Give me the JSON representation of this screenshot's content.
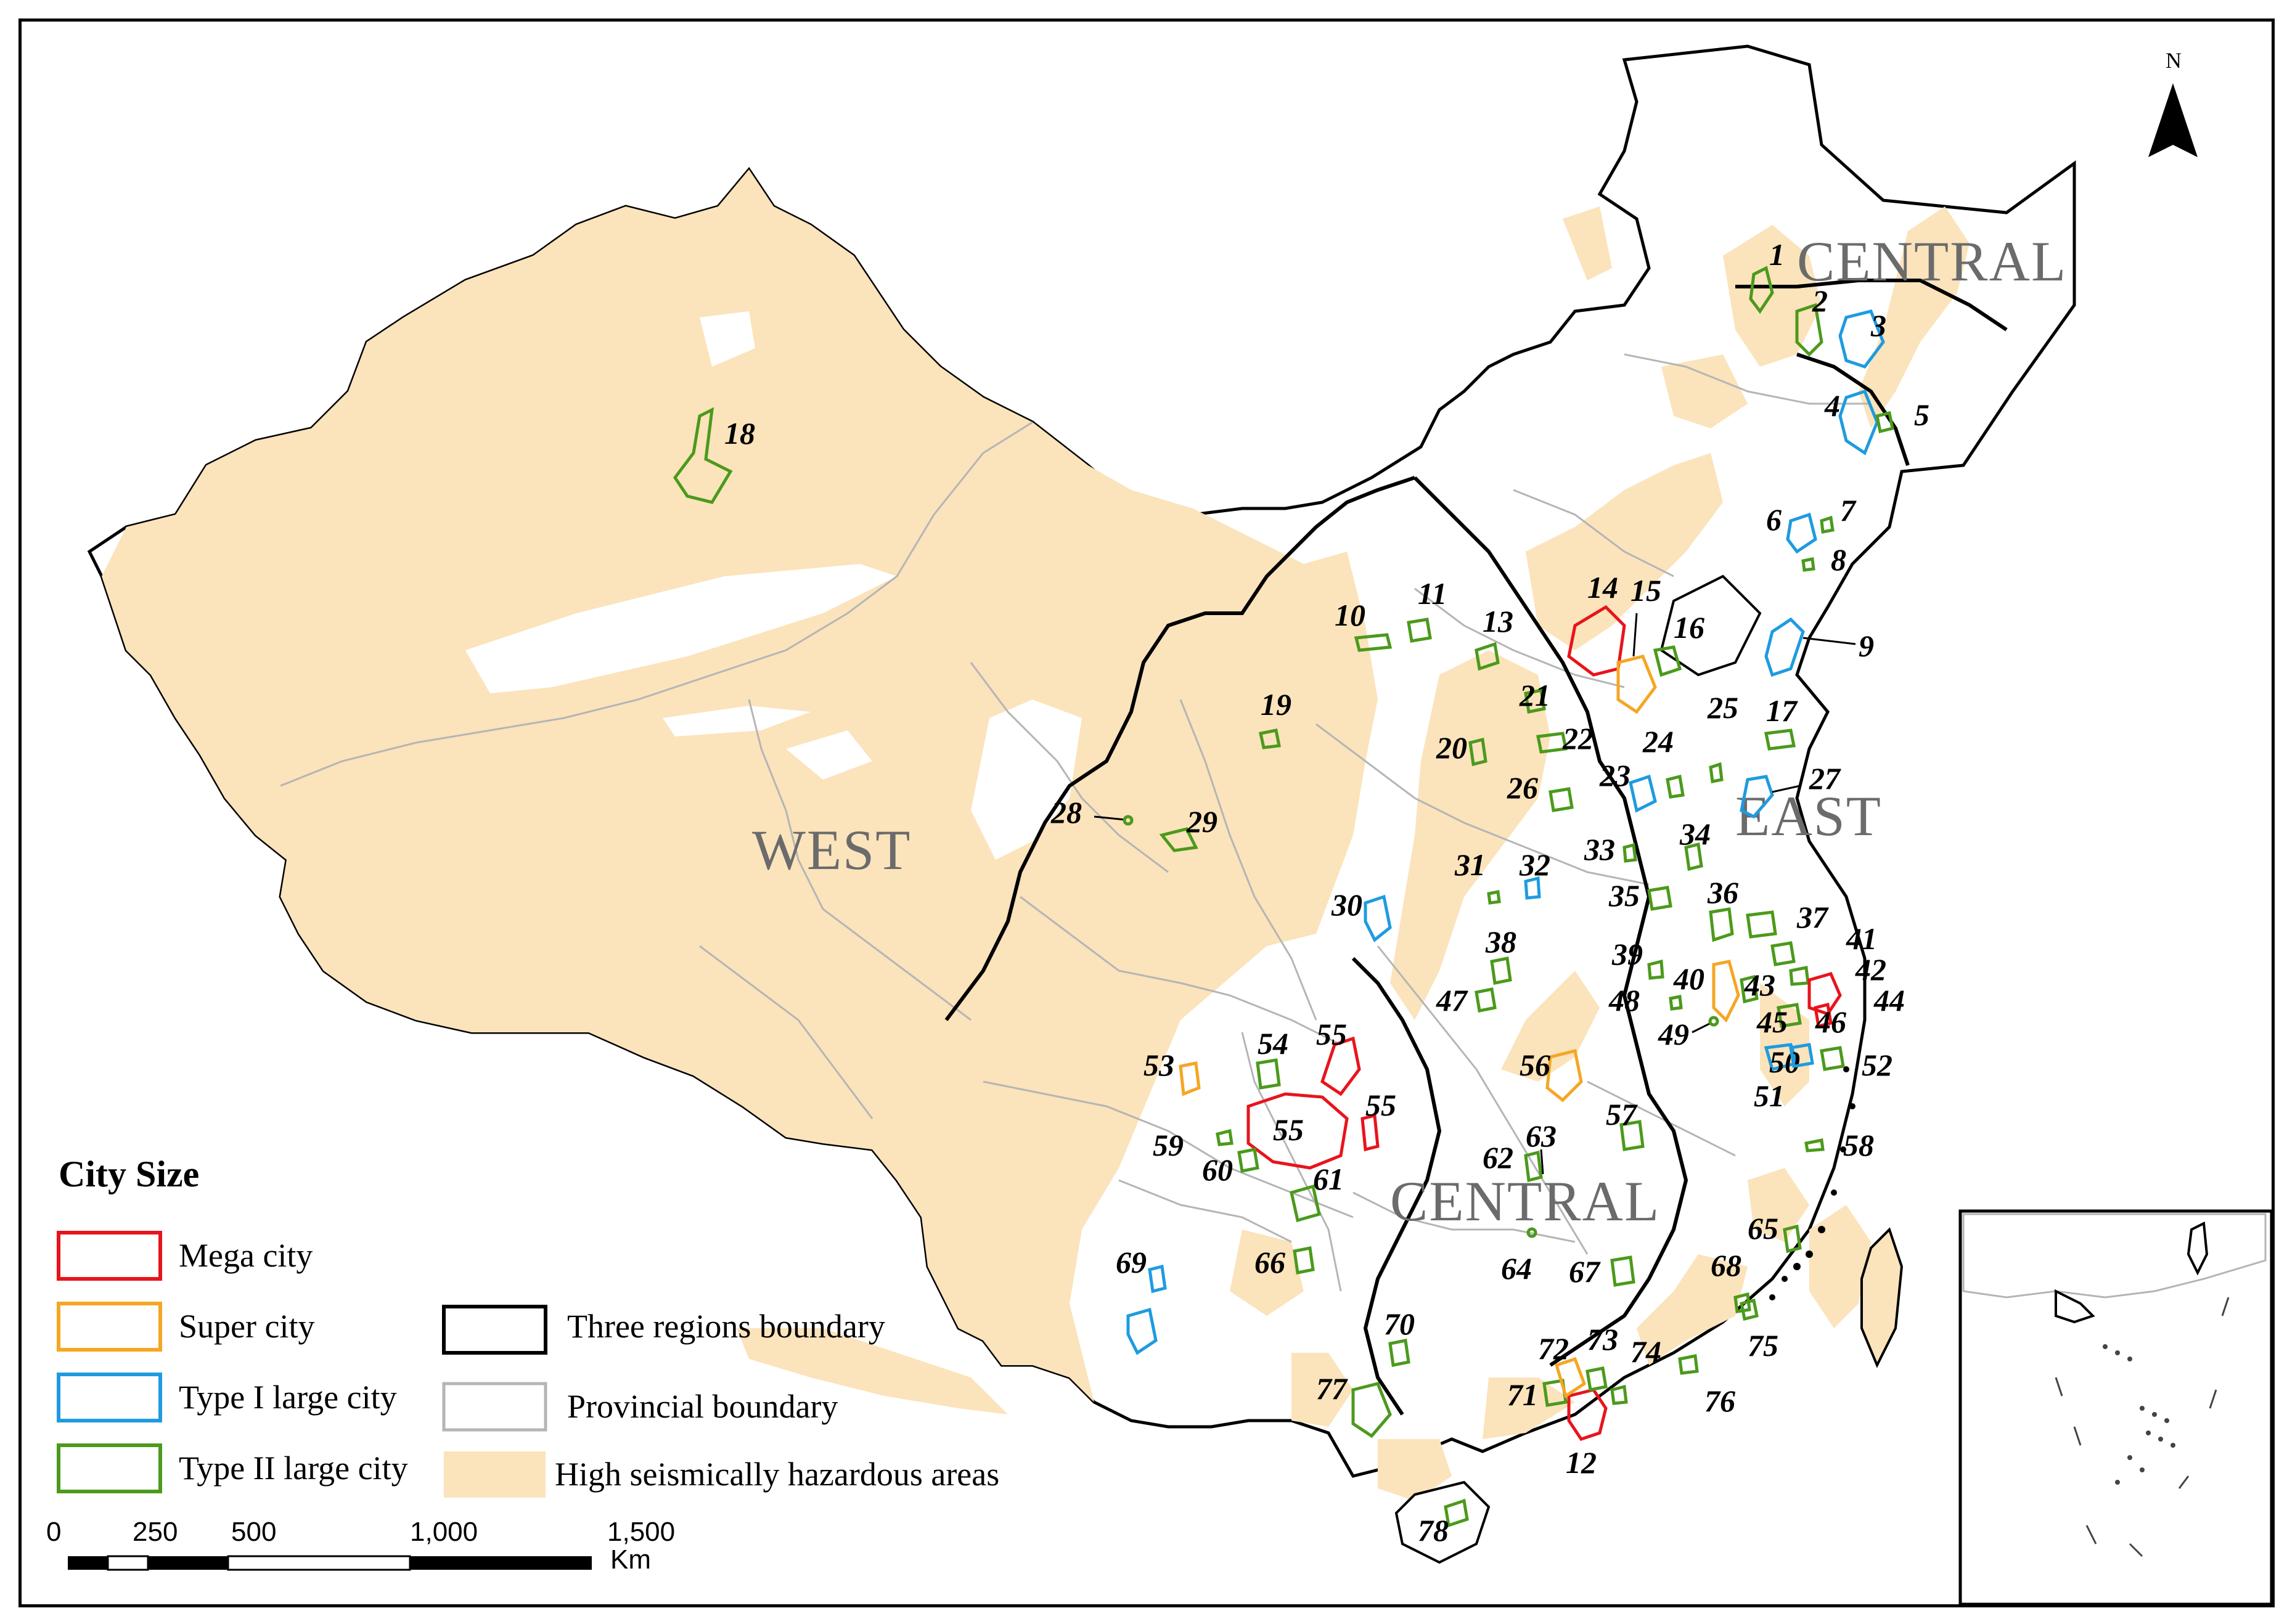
{
  "map": {
    "regions": [
      {
        "id": "west",
        "label": "WEST"
      },
      {
        "id": "central-north",
        "label": "CENTRAL"
      },
      {
        "id": "central-south",
        "label": "CENTRAL"
      },
      {
        "id": "east",
        "label": "EAST"
      }
    ],
    "north_label": "N",
    "icon": "north-arrow-icon"
  },
  "legend": {
    "title": "City Size",
    "city_size": [
      {
        "label": "Mega city",
        "color": "#e8141c"
      },
      {
        "label": "Super city",
        "color": "#f5a623"
      },
      {
        "label": "Type I large city",
        "color": "#1e9be0"
      },
      {
        "label": "Type II large city",
        "color": "#4b9a1c"
      }
    ],
    "boundaries": [
      {
        "label": "Three regions boundary",
        "color": "#000000"
      },
      {
        "label": "Provincial boundary",
        "color": "#b5b5b5"
      },
      {
        "label": "High seismically hazardous areas",
        "color": "#fbe3bb"
      }
    ]
  },
  "scale_bar": {
    "ticks": [
      "0",
      "250",
      "500",
      "1,000",
      "1,500"
    ],
    "unit": "Km"
  },
  "cities": [
    {
      "id": "1",
      "size": "Type II large city"
    },
    {
      "id": "2",
      "size": "Type II large city"
    },
    {
      "id": "3",
      "size": "Type I large city"
    },
    {
      "id": "4",
      "size": "Type I large city"
    },
    {
      "id": "5",
      "size": "Type II large city"
    },
    {
      "id": "6",
      "size": "Type I large city"
    },
    {
      "id": "7",
      "size": "Type II large city"
    },
    {
      "id": "8",
      "size": "Type II large city"
    },
    {
      "id": "9",
      "size": "Type I large city"
    },
    {
      "id": "10",
      "size": "Type II large city"
    },
    {
      "id": "11",
      "size": "Type II large city"
    },
    {
      "id": "12",
      "size": "Mega city"
    },
    {
      "id": "13",
      "size": "Type II large city"
    },
    {
      "id": "14",
      "size": "Mega city"
    },
    {
      "id": "15",
      "size": "Super city"
    },
    {
      "id": "16",
      "size": "Type II large city"
    },
    {
      "id": "17",
      "size": "Type II large city"
    },
    {
      "id": "18",
      "size": "Type II large city"
    },
    {
      "id": "19",
      "size": "Type II large city"
    },
    {
      "id": "20",
      "size": "Type II large city"
    },
    {
      "id": "21",
      "size": "Type II large city"
    },
    {
      "id": "22",
      "size": "Type II large city"
    },
    {
      "id": "23",
      "size": "Type I large city"
    },
    {
      "id": "24",
      "size": "Type II large city"
    },
    {
      "id": "25",
      "size": "Type II large city"
    },
    {
      "id": "26",
      "size": "Type II large city"
    },
    {
      "id": "27",
      "size": "Type I large city"
    },
    {
      "id": "28",
      "size": "Type II large city"
    },
    {
      "id": "29",
      "size": "Type II large city"
    },
    {
      "id": "30",
      "size": "Type I large city"
    },
    {
      "id": "31",
      "size": "Type II large city"
    },
    {
      "id": "32",
      "size": "Type I large city"
    },
    {
      "id": "33",
      "size": "Type II large city"
    },
    {
      "id": "34",
      "size": "Type II large city"
    },
    {
      "id": "35",
      "size": "Type II large city"
    },
    {
      "id": "36",
      "size": "Type II large city"
    },
    {
      "id": "37",
      "size": "Type II large city"
    },
    {
      "id": "38",
      "size": "Type II large city"
    },
    {
      "id": "39",
      "size": "Type II large city"
    },
    {
      "id": "40",
      "size": "Super city"
    },
    {
      "id": "41",
      "size": "Type II large city"
    },
    {
      "id": "42",
      "size": "Type II large city"
    },
    {
      "id": "43",
      "size": "Type II large city"
    },
    {
      "id": "44",
      "size": "Mega city"
    },
    {
      "id": "45",
      "size": "Type II large city"
    },
    {
      "id": "46",
      "size": "Mega city"
    },
    {
      "id": "47",
      "size": "Type II large city"
    },
    {
      "id": "48",
      "size": "Type II large city"
    },
    {
      "id": "49",
      "size": "Type II large city"
    },
    {
      "id": "50",
      "size": "Type I large city"
    },
    {
      "id": "51",
      "size": "Type I large city"
    },
    {
      "id": "52",
      "size": "Type II large city"
    },
    {
      "id": "53",
      "size": "Super city"
    },
    {
      "id": "54",
      "size": "Type II large city"
    },
    {
      "id": "55",
      "size": "Mega city"
    },
    {
      "id": "55",
      "size": "Mega city"
    },
    {
      "id": "55",
      "size": "Mega city"
    },
    {
      "id": "56",
      "size": "Super city"
    },
    {
      "id": "57",
      "size": "Type II large city"
    },
    {
      "id": "58",
      "size": "Type II large city"
    },
    {
      "id": "59",
      "size": "Type II large city"
    },
    {
      "id": "60",
      "size": "Type II large city"
    },
    {
      "id": "61",
      "size": "Type II large city"
    },
    {
      "id": "62",
      "size": "Type II large city"
    },
    {
      "id": "63",
      "size": "Type II large city"
    },
    {
      "id": "64",
      "size": "Type II large city"
    },
    {
      "id": "65",
      "size": "Type II large city"
    },
    {
      "id": "66",
      "size": "Type II large city"
    },
    {
      "id": "67",
      "size": "Type II large city"
    },
    {
      "id": "68",
      "size": "Type II large city"
    },
    {
      "id": "69",
      "size": "Type I large city"
    },
    {
      "id": "70",
      "size": "Type II large city"
    },
    {
      "id": "71",
      "size": "Type II large city"
    },
    {
      "id": "72",
      "size": "Super city"
    },
    {
      "id": "73",
      "size": "Type II large city"
    },
    {
      "id": "74",
      "size": "Type II large city"
    },
    {
      "id": "75",
      "size": "Type II large city"
    },
    {
      "id": "76",
      "size": "Type II large city"
    },
    {
      "id": "77",
      "size": "Type II large city"
    },
    {
      "id": "78",
      "size": "Type II large city"
    }
  ]
}
